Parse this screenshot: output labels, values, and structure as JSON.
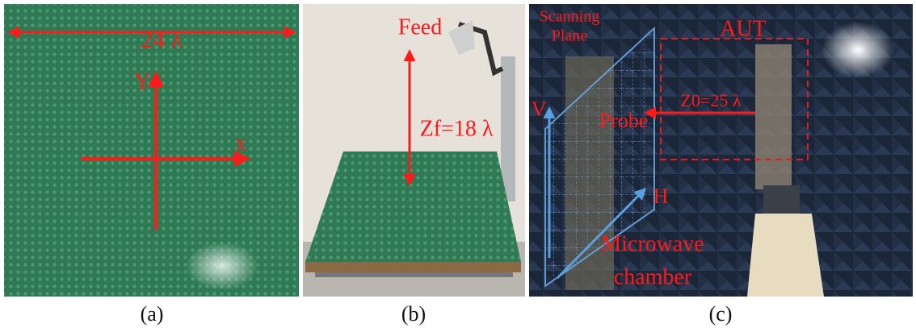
{
  "panels": [
    {
      "caption": "(a)",
      "labels": {
        "width": "24 λ",
        "y_axis": "Y",
        "x_axis": "x"
      }
    },
    {
      "caption": "(b)",
      "labels": {
        "feed": "Feed",
        "focal": "Zf=18 λ"
      }
    },
    {
      "caption": "(c)",
      "labels": {
        "scan_line1": "Scanning",
        "scan_line2": "Plane",
        "aut": "AUT",
        "distance": "Z0=25 λ",
        "v": "V",
        "probe": "Probe",
        "h": "H",
        "chamber_line1": "Microwave",
        "chamber_line2": "chamber"
      }
    }
  ]
}
